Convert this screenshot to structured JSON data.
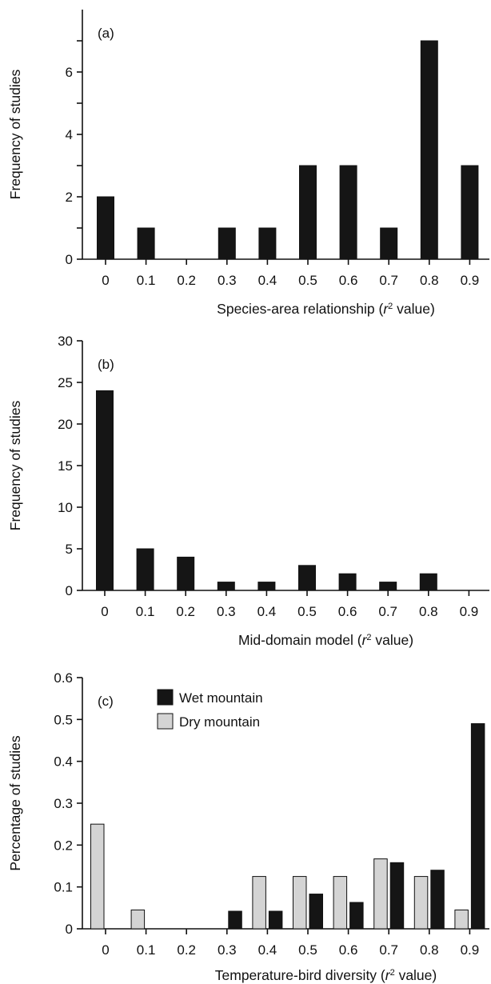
{
  "chart_data": [
    {
      "type": "bar",
      "panel_label": "(a)",
      "title": "",
      "xlabel_pre": "Species-area relationship (",
      "xlabel_var": "r",
      "xlabel_sup": "2",
      "xlabel_post": " value)",
      "ylabel": "Frequency of studies",
      "categories": [
        "0",
        "0.1",
        "0.2",
        "0.3",
        "0.4",
        "0.5",
        "0.6",
        "0.7",
        "0.8",
        "0.9"
      ],
      "series": [
        {
          "values": [
            2,
            1,
            0,
            1,
            1,
            3,
            3,
            1,
            7,
            3
          ],
          "color": "#151515"
        }
      ],
      "ylim": [
        0,
        8
      ],
      "yticks": [
        0,
        2,
        4,
        6
      ],
      "yticklabels": [
        "0",
        "2",
        "4",
        "6"
      ],
      "yminor": [
        1,
        3,
        5,
        7
      ],
      "show_top_label": false,
      "legend": false
    },
    {
      "type": "bar",
      "panel_label": "(b)",
      "title": "",
      "xlabel_pre": "Mid-domain model (",
      "xlabel_var": "r",
      "xlabel_sup": "2",
      "xlabel_post": " value)",
      "ylabel": "Frequency of studies",
      "categories": [
        "0",
        "0.1",
        "0.2",
        "0.3",
        "0.4",
        "0.5",
        "0.6",
        "0.7",
        "0.8",
        "0.9"
      ],
      "series": [
        {
          "values": [
            24,
            5,
            4,
            1,
            1,
            3,
            2,
            1,
            2,
            0
          ],
          "color": "#151515"
        }
      ],
      "ylim": [
        0,
        30
      ],
      "yticks": [
        0,
        5,
        10,
        15,
        20,
        25,
        30
      ],
      "yticklabels": [
        "0",
        "5",
        "10",
        "15",
        "20",
        "25",
        "30"
      ],
      "yminor": [],
      "legend": false
    },
    {
      "type": "bar",
      "panel_label": "(c)",
      "title": "",
      "xlabel_pre": "Temperature-bird diversity (",
      "xlabel_var": "r",
      "xlabel_sup": "2",
      "xlabel_post": " value)",
      "ylabel": "Percentage of studies",
      "categories": [
        "0",
        "0.1",
        "0.2",
        "0.3",
        "0.4",
        "0.5",
        "0.6",
        "0.7",
        "0.8",
        "0.9"
      ],
      "series": [
        {
          "name": "Dry mountain",
          "values": [
            0.25,
            0.045,
            0,
            0,
            0.125,
            0.125,
            0.125,
            0.167,
            0.125,
            0.045
          ],
          "color": "#d4d4d4"
        },
        {
          "name": "Wet mountain",
          "values": [
            0,
            0,
            0,
            0.042,
            0.042,
            0.083,
            0.063,
            0.158,
            0.14,
            0.49
          ],
          "color": "#151515"
        }
      ],
      "ylim": [
        0,
        0.6
      ],
      "yticks": [
        0,
        0.1,
        0.2,
        0.3,
        0.4,
        0.5,
        0.6
      ],
      "yticklabels": [
        "0",
        "0.1",
        "0.2",
        "0.3",
        "0.4",
        "0.5",
        "0.6"
      ],
      "yminor": [],
      "legend": true,
      "legend_entries": [
        "Wet mountain",
        "Dry mountain"
      ],
      "legend_placement": "top-left"
    }
  ]
}
